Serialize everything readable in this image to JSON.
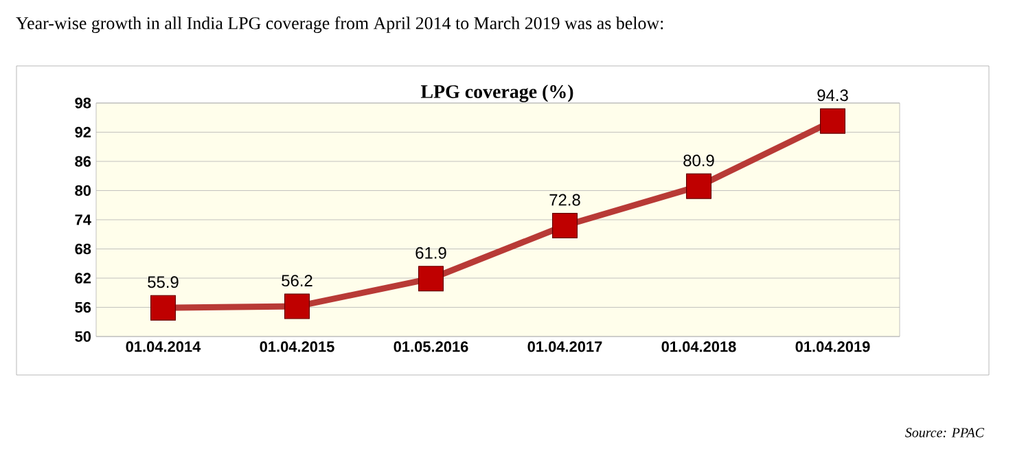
{
  "chart_data": {
    "type": "line",
    "title": "LPG coverage (%)",
    "annotations": [
      "Year-wise growth in all India LPG coverage from April 2014 to March 2019 was as below:",
      "Source: PPAC"
    ],
    "categories": [
      "01.04.2014",
      "01.04.2015",
      "01.05.2016",
      "01.04.2017",
      "01.04.2018",
      "01.04.2019"
    ],
    "series": [
      {
        "color": "#b83a36",
        "values": [
          55.9,
          56.2,
          61.9,
          72.8,
          80.9,
          94.3
        ]
      }
    ],
    "ylim": [
      50,
      98
    ],
    "yticks": [
      50,
      56,
      62,
      68,
      74,
      80,
      86,
      92,
      98
    ],
    "grid": "y",
    "marker": "square",
    "line_style": "solid",
    "data_labels": true
  }
}
